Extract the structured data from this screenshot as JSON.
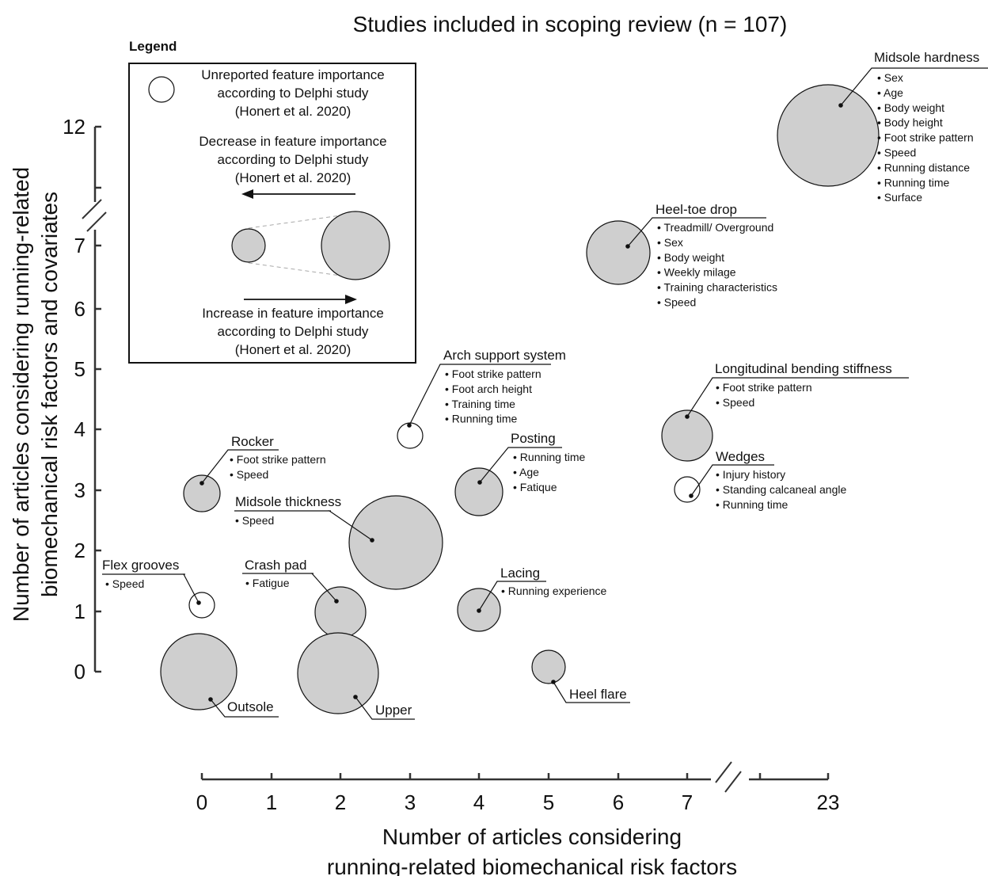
{
  "chart_data": {
    "type": "bubble",
    "title": "Studies included in scoping review (n = 107)",
    "xlabel": [
      "Number of articles considering",
      "running-related biomechanical risk factors"
    ],
    "ylabel": [
      "Number of articles considering running-related",
      "biomechanical risk factors and covariates"
    ],
    "x_ticks": [
      "0",
      "1",
      "2",
      "3",
      "4",
      "5",
      "6",
      "7",
      "23"
    ],
    "y_ticks": [
      "0",
      "1",
      "2",
      "3",
      "4",
      "5",
      "6",
      "7",
      "12"
    ],
    "axis_breaks": {
      "x": [
        7,
        23
      ],
      "y": [
        7,
        12
      ]
    },
    "legend": {
      "title": "Legend",
      "items": [
        {
          "marker": "open-circle",
          "lines": [
            "Unreported feature importance",
            "according to Delphi study",
            "(Honert et al. 2020)"
          ]
        },
        {
          "marker": "arrow-left",
          "lines": [
            "Decrease in feature importance",
            "according to Delphi study",
            "(Honert et al. 2020)"
          ]
        },
        {
          "marker": "arrow-right",
          "lines": [
            "Increase in feature importance",
            "according to Delphi study",
            "(Honert et al. 2020)"
          ]
        }
      ]
    },
    "points": [
      {
        "name": "Midsole hardness",
        "x": 23,
        "y": 12,
        "importance": "increase",
        "covariates": [
          "Sex",
          "Age",
          "Body weight",
          "Body height",
          "Foot strike pattern",
          "Speed",
          "Running distance",
          "Running time",
          "Surface"
        ]
      },
      {
        "name": "Heel-toe drop",
        "x": 6,
        "y": 7,
        "importance": "increase",
        "covariates": [
          "Treadmill/ Overground",
          "Sex",
          "Body weight",
          "Weekly milage",
          "Training characteristics",
          "Speed"
        ]
      },
      {
        "name": "Arch support system",
        "x": 3,
        "y": 4,
        "importance": "unreported",
        "covariates": [
          "Foot strike pattern",
          "Foot arch height",
          "Training time",
          "Running time"
        ]
      },
      {
        "name": "Longitudinal bending stiffness",
        "x": 7,
        "y": 4,
        "importance": "increase",
        "covariates": [
          "Foot strike pattern",
          "Speed"
        ]
      },
      {
        "name": "Rocker",
        "x": 0,
        "y": 3,
        "importance": "decrease",
        "covariates": [
          "Foot strike pattern",
          "Speed"
        ]
      },
      {
        "name": "Posting",
        "x": 4,
        "y": 3,
        "importance": "increase",
        "covariates": [
          "Running time",
          "Age",
          "Fatique"
        ]
      },
      {
        "name": "Wedges",
        "x": 7,
        "y": 3,
        "importance": "unreported",
        "covariates": [
          "Injury history",
          "Standing calcaneal angle",
          "Running time"
        ]
      },
      {
        "name": "Midsole thickness",
        "x": 3,
        "y": 2,
        "importance": "increase",
        "covariates": [
          "Speed"
        ]
      },
      {
        "name": "Flex grooves",
        "x": 0,
        "y": 1,
        "importance": "unreported",
        "covariates": [
          "Speed"
        ]
      },
      {
        "name": "Crash pad",
        "x": 2,
        "y": 1,
        "importance": "increase",
        "covariates": [
          "Fatigue"
        ]
      },
      {
        "name": "Lacing",
        "x": 4,
        "y": 1,
        "importance": "increase",
        "covariates": [
          "Running experience"
        ]
      },
      {
        "name": "Outsole",
        "x": 0,
        "y": 0,
        "importance": "increase",
        "covariates": []
      },
      {
        "name": "Upper",
        "x": 2,
        "y": 0,
        "importance": "increase",
        "covariates": []
      },
      {
        "name": "Heel flare",
        "x": 5,
        "y": 0,
        "importance": "decrease",
        "covariates": []
      }
    ]
  }
}
